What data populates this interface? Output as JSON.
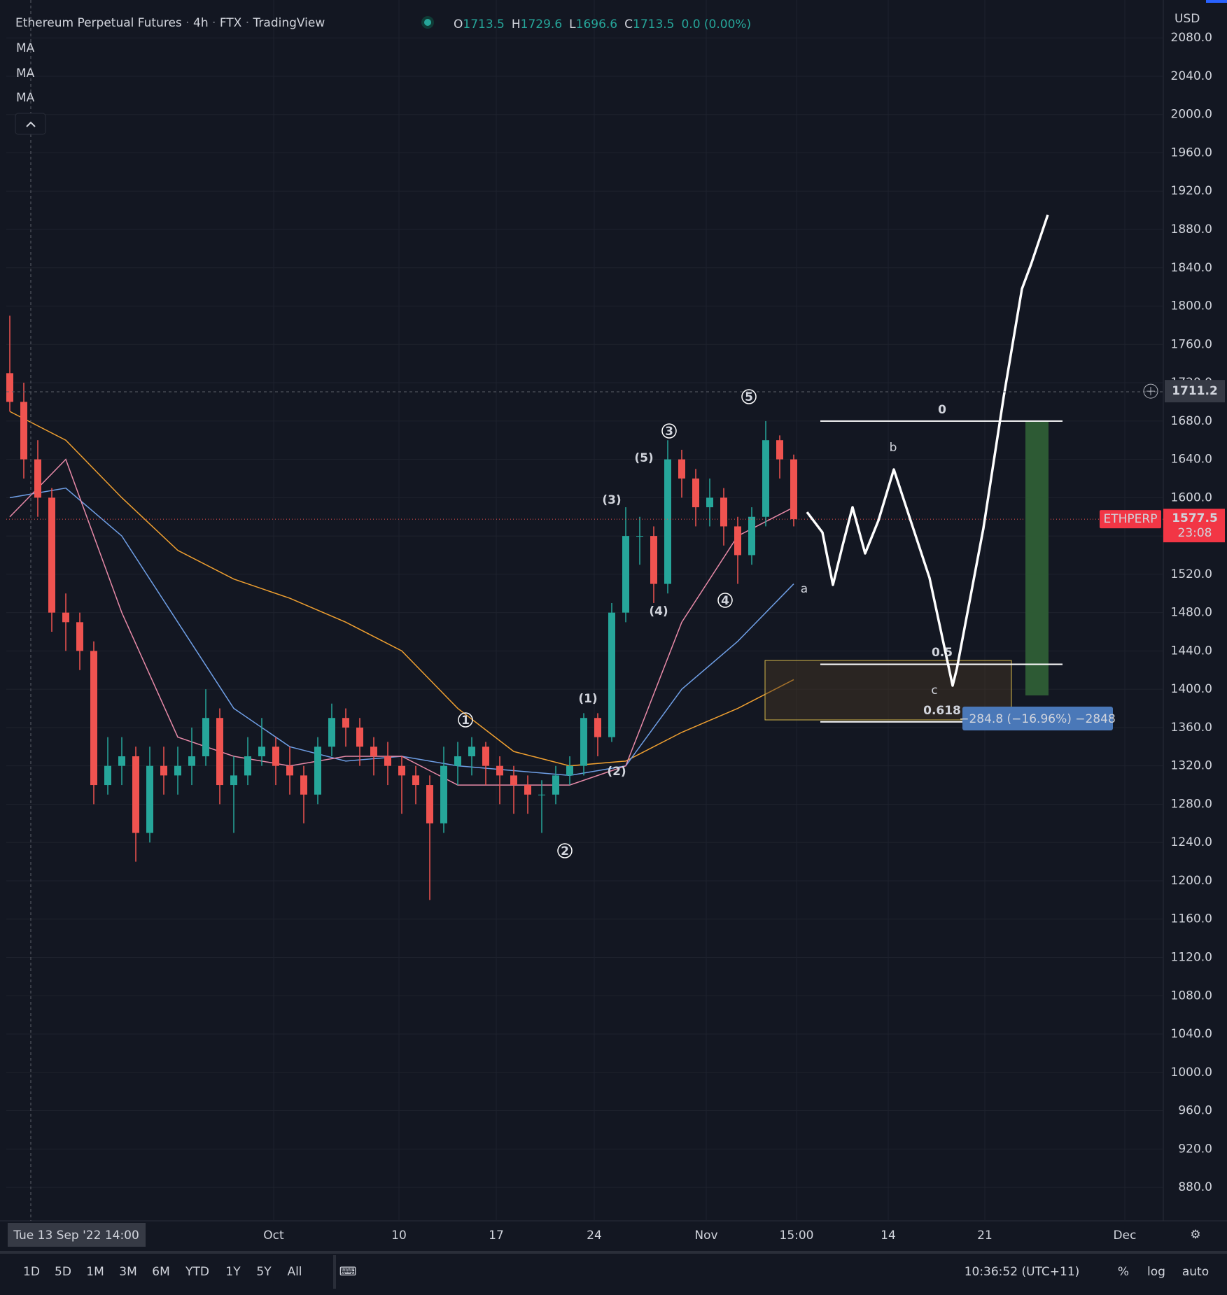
{
  "chart_data": {
    "type": "candlestick",
    "title_parts": [
      "Ethereum Perpetual Futures",
      "4h",
      "FTX",
      "TradingView"
    ],
    "ohlc": [
      {
        "label": "O",
        "value": 1713.5
      },
      {
        "label": "H",
        "value": 1729.6
      },
      {
        "label": "L",
        "value": 1696.6
      },
      {
        "label": "C",
        "value": 1713.5
      }
    ],
    "change": {
      "value": 0,
      "label": "0.0 (0.00%)"
    },
    "indicators": [
      "MA",
      "MA",
      "MA"
    ],
    "currency": "USD",
    "candles": [
      [
        1730,
        1790,
        1690,
        1700
      ],
      [
        1700,
        1720,
        1620,
        1640
      ],
      [
        1640,
        1660,
        1580,
        1600
      ],
      [
        1600,
        1610,
        1460,
        1480
      ],
      [
        1480,
        1500,
        1440,
        1470
      ],
      [
        1470,
        1480,
        1420,
        1440
      ],
      [
        1440,
        1450,
        1280,
        1300
      ],
      [
        1300,
        1350,
        1290,
        1320
      ],
      [
        1320,
        1350,
        1300,
        1330
      ],
      [
        1330,
        1340,
        1220,
        1250
      ],
      [
        1250,
        1340,
        1240,
        1320
      ],
      [
        1320,
        1340,
        1290,
        1310
      ],
      [
        1310,
        1340,
        1290,
        1320
      ],
      [
        1320,
        1360,
        1300,
        1330
      ],
      [
        1330,
        1400,
        1320,
        1370
      ],
      [
        1370,
        1380,
        1280,
        1300
      ],
      [
        1300,
        1330,
        1250,
        1310
      ],
      [
        1310,
        1350,
        1300,
        1330
      ],
      [
        1330,
        1370,
        1320,
        1340
      ],
      [
        1340,
        1350,
        1300,
        1320
      ],
      [
        1320,
        1340,
        1290,
        1310
      ],
      [
        1310,
        1320,
        1260,
        1290
      ],
      [
        1290,
        1350,
        1280,
        1340
      ],
      [
        1340,
        1385,
        1330,
        1370
      ],
      [
        1370,
        1380,
        1340,
        1360
      ],
      [
        1360,
        1370,
        1320,
        1340
      ],
      [
        1340,
        1350,
        1310,
        1330
      ],
      [
        1330,
        1345,
        1300,
        1320
      ],
      [
        1320,
        1330,
        1270,
        1310
      ],
      [
        1310,
        1320,
        1280,
        1300
      ],
      [
        1300,
        1310,
        1180,
        1260
      ],
      [
        1260,
        1340,
        1250,
        1320
      ],
      [
        1320,
        1345,
        1300,
        1330
      ],
      [
        1330,
        1350,
        1310,
        1340
      ],
      [
        1340,
        1345,
        1300,
        1320
      ],
      [
        1320,
        1330,
        1280,
        1310
      ],
      [
        1310,
        1320,
        1270,
        1300
      ],
      [
        1300,
        1310,
        1270,
        1290
      ],
      [
        1290,
        1305,
        1250,
        1290
      ],
      [
        1290,
        1320,
        1280,
        1310
      ],
      [
        1310,
        1330,
        1300,
        1320
      ],
      [
        1320,
        1375,
        1310,
        1370
      ],
      [
        1370,
        1375,
        1330,
        1350
      ],
      [
        1350,
        1490,
        1345,
        1480
      ],
      [
        1480,
        1590,
        1470,
        1560
      ],
      [
        1560,
        1580,
        1530,
        1560
      ],
      [
        1560,
        1570,
        1490,
        1510
      ],
      [
        1510,
        1660,
        1500,
        1640
      ],
      [
        1640,
        1650,
        1600,
        1620
      ],
      [
        1620,
        1630,
        1570,
        1590
      ],
      [
        1590,
        1620,
        1570,
        1600
      ],
      [
        1600,
        1610,
        1550,
        1570
      ],
      [
        1570,
        1580,
        1510,
        1540
      ],
      [
        1540,
        1590,
        1530,
        1580
      ],
      [
        1580,
        1680,
        1570,
        1660
      ],
      [
        1660,
        1665,
        1620,
        1640
      ],
      [
        1640,
        1645,
        1570,
        1577.5
      ]
    ],
    "up_color": "#26a69a",
    "down_color": "#ef5350",
    "moving_averages": [
      {
        "color": "#f0a030",
        "values": [
          1690,
          1660,
          1600,
          1545,
          1515,
          1495,
          1470,
          1440,
          1380,
          1335,
          1320,
          1325,
          1355,
          1380,
          1410
        ]
      },
      {
        "color": "#6f9fe6",
        "values": [
          1600,
          1610,
          1560,
          1470,
          1380,
          1340,
          1325,
          1330,
          1320,
          1315,
          1310,
          1320,
          1400,
          1450,
          1510
        ]
      },
      {
        "color": "#e88aa8",
        "values": [
          1580,
          1640,
          1480,
          1350,
          1330,
          1320,
          1330,
          1330,
          1300,
          1300,
          1300,
          1320,
          1470,
          1560,
          1590
        ]
      }
    ],
    "ylim": [
      845,
      2113
    ],
    "yticks": [
      {
        "value": 880,
        "label": "880.0"
      },
      {
        "value": 920,
        "label": "920.0"
      },
      {
        "value": 960,
        "label": "960.0"
      },
      {
        "value": 1000,
        "label": "1000.0"
      },
      {
        "value": 1040,
        "label": "1040.0"
      },
      {
        "value": 1080,
        "label": "1080.0"
      },
      {
        "value": 1120,
        "label": "1120.0"
      },
      {
        "value": 1160,
        "label": "1160.0"
      },
      {
        "value": 1200,
        "label": "1200.0"
      },
      {
        "value": 1240,
        "label": "1240.0"
      },
      {
        "value": 1280,
        "label": "1280.0"
      },
      {
        "value": 1320,
        "label": "1320.0"
      },
      {
        "value": 1360,
        "label": "1360.0"
      },
      {
        "value": 1400,
        "label": "1400.0"
      },
      {
        "value": 1440,
        "label": "1440.0"
      },
      {
        "value": 1480,
        "label": "1480.0"
      },
      {
        "value": 1520,
        "label": "1520.0"
      },
      {
        "value": 1560,
        "label": "1560.0"
      },
      {
        "value": 1600,
        "label": "1600.0"
      },
      {
        "value": 1640,
        "label": "1640.0"
      },
      {
        "value": 1680,
        "label": "1680.0"
      },
      {
        "value": 1720,
        "label": "1720.0"
      },
      {
        "value": 1760,
        "label": "1760.0"
      },
      {
        "value": 1800,
        "label": "1800.0"
      },
      {
        "value": 1840,
        "label": "1840.0"
      },
      {
        "value": 1880,
        "label": "1880.0"
      },
      {
        "value": 1920,
        "label": "1920.0"
      },
      {
        "value": 1960,
        "label": "1960.0"
      },
      {
        "value": 2000,
        "label": "2000.0"
      },
      {
        "value": 2040,
        "label": "2040.0"
      },
      {
        "value": 2080,
        "label": "2080.0"
      }
    ],
    "x_labels": [
      "Oct",
      "10",
      "17",
      "24",
      "Nov",
      "15:00",
      "14",
      "21",
      "Dec"
    ],
    "crosshair_time": "Tue 13 Sep '22  14:00",
    "crosshair_price": {
      "value": 1711.2,
      "label": "1711.2"
    },
    "last_price": {
      "symbol": "ETHPERP",
      "value": 1577.5,
      "countdown": "23:08"
    },
    "wave_labels": [
      "1",
      "2",
      "3",
      "4",
      "5"
    ],
    "subwave_labels": [
      "(1)",
      "(2)",
      "(3)",
      "(4)",
      "(5)"
    ],
    "abc_labels": [
      "a",
      "b",
      "c"
    ],
    "fib_levels": [
      0,
      0.5,
      0.618
    ],
    "fib_prices": [
      1680,
      1426,
      1366
    ],
    "measure_label": "−284.8 (−16.96%) −2848",
    "ranges": [
      "1D",
      "5D",
      "1M",
      "3M",
      "6M",
      "YTD",
      "1Y",
      "5Y",
      "All"
    ],
    "clock": "10:36:52 (UTC+11)",
    "scale_options": [
      "%",
      "log",
      "auto"
    ]
  }
}
